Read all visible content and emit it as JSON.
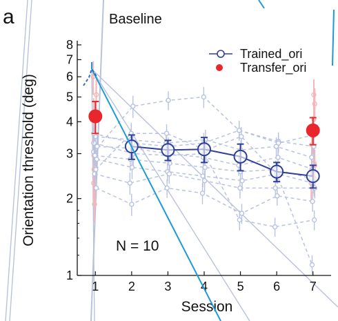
{
  "panel_label": "a",
  "chart_data": {
    "type": "line",
    "panel_title": "Baseline",
    "xlabel": "Session",
    "ylabel": "Orientation threshold (deg)",
    "yscale": "log",
    "xlim": [
      0.5,
      7.5
    ],
    "ylim": [
      1,
      8
    ],
    "xticks": [
      "1",
      "2",
      "3",
      "4",
      "5",
      "6",
      "7"
    ],
    "yticks": [
      "1",
      "2",
      "3",
      "4",
      "5",
      "6",
      "7",
      "8"
    ],
    "annotation": "N = 10",
    "legend": {
      "placement": "top-right",
      "entries": [
        "Trained_ori",
        "Transfer_ori"
      ]
    },
    "series": [
      {
        "name": "Trained_ori",
        "color": "#2e3f96",
        "marker": "open-circle",
        "x": [
          2,
          3,
          4,
          5,
          6,
          7
        ],
        "y": [
          3.2,
          3.1,
          3.12,
          2.92,
          2.55,
          2.45
        ],
        "err": [
          0.35,
          0.28,
          0.35,
          0.35,
          0.22,
          0.25
        ]
      },
      {
        "name": "Transfer_ori",
        "color": "#e8262b",
        "marker": "filled-circle",
        "x": [
          1,
          7
        ],
        "y": [
          4.2,
          3.7
        ],
        "err": [
          0.6,
          0.45
        ]
      }
    ],
    "individual_trained": {
      "color": "#b8c2e2",
      "lines": [
        [
          3.05,
          4.6,
          4.85,
          5.0,
          3.7,
          3.35,
          3.2
        ],
        [
          3.5,
          3.4,
          3.3,
          3.4,
          3.1,
          3.2,
          2.9
        ],
        [
          3.2,
          3.15,
          3.0,
          2.9,
          2.7,
          2.9,
          2.6
        ],
        [
          2.95,
          2.85,
          2.75,
          2.65,
          2.55,
          2.6,
          2.4
        ],
        [
          2.85,
          2.65,
          2.55,
          2.45,
          2.35,
          2.5,
          2.3
        ],
        [
          2.5,
          2.3,
          2.5,
          2.35,
          2.2,
          2.2,
          2.2
        ],
        [
          2.2,
          1.9,
          2.2,
          2.1,
          1.75,
          2.05,
          1.95
        ],
        [
          3.3,
          3.0,
          2.95,
          3.0,
          1.65,
          1.55,
          1.65
        ],
        [
          2.6,
          3.6,
          3.6,
          3.1,
          3.5,
          2.5,
          1.1
        ],
        [
          3.6,
          3.3,
          3.2,
          3.3,
          3.7,
          3.3,
          3.55
        ]
      ],
      "err": [
        0.18,
        0.2,
        0.17,
        0.19,
        0.18,
        0.17,
        0.18
      ]
    },
    "individual_transfer": {
      "color": "#f4b6b8",
      "x": [
        1,
        7
      ],
      "values": [
        [
          6.0,
          5.1
        ],
        [
          5.1,
          4.7
        ],
        [
          4.3,
          4.1
        ],
        [
          3.5,
          3.5
        ],
        [
          3.3,
          3.25
        ],
        [
          2.95,
          2.7
        ],
        [
          2.6,
          2.75
        ],
        [
          2.3,
          2.6
        ],
        [
          2.2,
          2.4
        ],
        [
          1.9,
          2.3
        ]
      ]
    }
  },
  "overlay_colors": {
    "grey": "#b9c2db",
    "blue": "#1c9ad6"
  }
}
